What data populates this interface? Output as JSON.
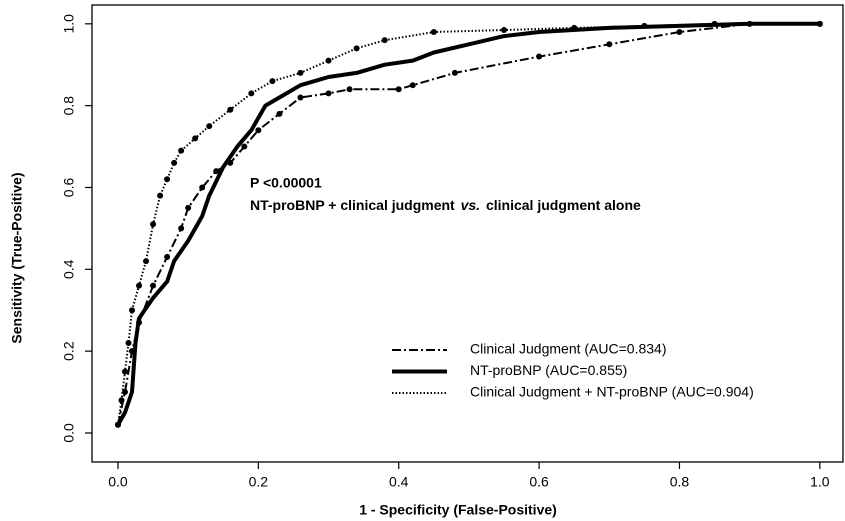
{
  "chart_data": {
    "type": "line",
    "xlabel": "1 - Specificity (False-Positive)",
    "ylabel": "Sensitivity (True-Positive)",
    "annotation": {
      "line1": "P <0.00001",
      "line2": [
        "NT-proBNP + clinical judgment",
        "vs.",
        "clinical judgment alone"
      ]
    },
    "xlim": [
      -0.037,
      1.033
    ],
    "ylim": [
      -0.071,
      1.046
    ],
    "xticks": [
      {
        "value": 0,
        "label": "0.0"
      },
      0.2,
      0.4,
      0.6,
      0.8,
      {
        "value": 1,
        "label": "1.0"
      }
    ],
    "yticks": [
      {
        "value": 0,
        "label": "0.0"
      },
      0.2,
      0.4,
      0.6,
      0.8,
      {
        "value": 1,
        "label": "1.0"
      }
    ],
    "legend": "lower right",
    "series": [
      {
        "name": "Clinical Judgment (AUC=0.834)",
        "color": "#000000",
        "line_style": "dashdot",
        "markers": true,
        "x": [
          0,
          0.01,
          0.02,
          0.03,
          0.05,
          0.07,
          0.09,
          0.1,
          0.12,
          0.14,
          0.16,
          0.18,
          0.2,
          0.23,
          0.26,
          0.3,
          0.33,
          0.4,
          0.42,
          0.48,
          0.6,
          0.7,
          0.8,
          0.9,
          1.0
        ],
        "values": [
          0.02,
          0.1,
          0.2,
          0.27,
          0.36,
          0.43,
          0.5,
          0.55,
          0.6,
          0.64,
          0.66,
          0.7,
          0.74,
          0.78,
          0.82,
          0.83,
          0.84,
          0.84,
          0.85,
          0.88,
          0.92,
          0.95,
          0.98,
          1.0,
          1.0
        ]
      },
      {
        "name": "NT-proBNP (AUC=0.855)",
        "color": "#000000",
        "line_style": "solid",
        "markers": false,
        "x": [
          0,
          0.01,
          0.02,
          0.025,
          0.03,
          0.05,
          0.07,
          0.08,
          0.1,
          0.12,
          0.13,
          0.15,
          0.17,
          0.19,
          0.21,
          0.23,
          0.26,
          0.3,
          0.34,
          0.38,
          0.42,
          0.45,
          0.5,
          0.55,
          0.6,
          0.7,
          0.8,
          0.9,
          1.0
        ],
        "values": [
          0.02,
          0.05,
          0.1,
          0.22,
          0.28,
          0.33,
          0.37,
          0.42,
          0.47,
          0.53,
          0.58,
          0.65,
          0.7,
          0.74,
          0.8,
          0.82,
          0.85,
          0.87,
          0.88,
          0.9,
          0.91,
          0.93,
          0.95,
          0.97,
          0.98,
          0.99,
          0.995,
          1.0,
          1.0
        ]
      },
      {
        "name": "Clinical Judgment + NT-proBNP (AUC=0.904)",
        "color": "#000000",
        "line_style": "dotted",
        "markers": true,
        "x": [
          0,
          0.005,
          0.01,
          0.015,
          0.02,
          0.03,
          0.04,
          0.05,
          0.06,
          0.07,
          0.08,
          0.09,
          0.11,
          0.13,
          0.16,
          0.19,
          0.22,
          0.26,
          0.3,
          0.34,
          0.38,
          0.45,
          0.55,
          0.65,
          0.75,
          0.85,
          1.0
        ],
        "values": [
          0.02,
          0.08,
          0.15,
          0.22,
          0.3,
          0.36,
          0.42,
          0.51,
          0.58,
          0.62,
          0.66,
          0.69,
          0.72,
          0.75,
          0.79,
          0.83,
          0.86,
          0.88,
          0.91,
          0.94,
          0.96,
          0.98,
          0.985,
          0.99,
          0.995,
          1.0,
          1.0
        ]
      }
    ]
  }
}
